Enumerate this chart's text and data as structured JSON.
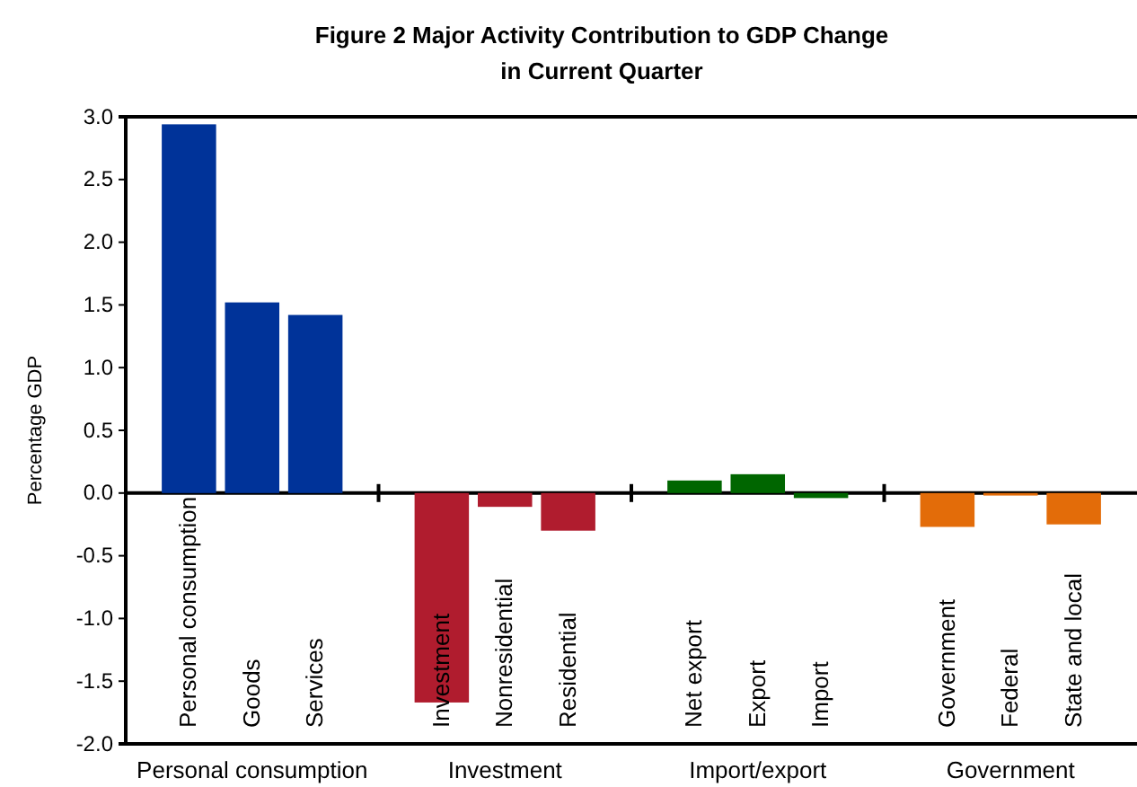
{
  "chart_data": {
    "type": "bar",
    "title": "Figure 2  Major Activity Contribution to GDP Change\nin Current Quarter",
    "ylabel": "Percentage GDP",
    "categories": [
      "Personal consumption",
      "Goods",
      "Services",
      null,
      "Investment",
      "Nonresidential",
      "Residential",
      null,
      "Net export",
      "Export",
      "Import",
      null,
      "Government",
      "Federal",
      "State and local"
    ],
    "values": [
      2.94,
      1.52,
      1.42,
      null,
      -1.67,
      -0.11,
      -0.3,
      null,
      0.1,
      0.15,
      -0.04,
      null,
      -0.27,
      -0.02,
      -0.25
    ],
    "colors": [
      "#003399",
      "#003399",
      "#003399",
      null,
      "#b01c2e",
      "#b01c2e",
      "#b01c2e",
      null,
      "#006600",
      "#006600",
      "#006600",
      null,
      "#e36c09",
      "#e36c09",
      "#e36c09"
    ],
    "ylim": [
      -2,
      3
    ],
    "yticks": [
      {
        "value": -2,
        "label": "-2.0"
      },
      {
        "value": -1.5,
        "label": "-1.5"
      },
      {
        "value": -1,
        "label": "-1.0"
      },
      {
        "value": -0.5,
        "label": "-0.5"
      },
      {
        "value": 0,
        "label": "0.0"
      },
      {
        "value": 0.5,
        "label": "0.5"
      },
      {
        "value": 1,
        "label": "1.0"
      },
      {
        "value": 1.5,
        "label": "1.5"
      },
      {
        "value": 2,
        "label": "2.0"
      },
      {
        "value": 2.5,
        "label": "2.5"
      },
      {
        "value": 3,
        "label": "3.0"
      }
    ],
    "annotations": [
      "Personal consumption",
      "Investment",
      "Import/export",
      "Government"
    ]
  }
}
